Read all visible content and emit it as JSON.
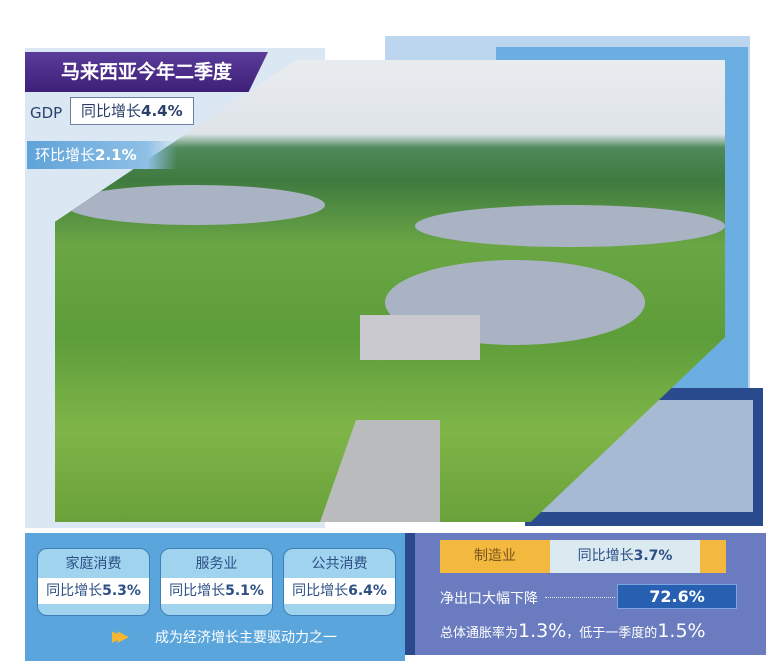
{
  "header": {
    "title": "马来西亚今年二季度"
  },
  "gdp": {
    "label": "GDP",
    "yoy_prefix": "同比增长",
    "yoy_value": "4.4%",
    "qoq_prefix": "环比增长",
    "qoq_value": "2.1%"
  },
  "cards": [
    {
      "title": "家庭消费",
      "prefix": "同比增长",
      "value": "5.3%"
    },
    {
      "title": "服务业",
      "prefix": "同比增长",
      "value": "5.1%"
    },
    {
      "title": "公共消费",
      "prefix": "同比增长",
      "value": "6.4%"
    }
  ],
  "drive_text": "成为经济增长主要驱动力之一",
  "manufacturing": {
    "label": "制造业",
    "prefix": "同比增长",
    "value": "3.7%"
  },
  "net_exports": {
    "label": "净出口大幅下降",
    "value": "72.6%"
  },
  "inflation": {
    "t1": "总体通胀率为",
    "v1": "1.3%",
    "t2": "，低于一季度的",
    "v2": "1.5%"
  },
  "colors": {
    "purple": "#4a2b87",
    "blue": "#5aa6dc",
    "navy": "#294b8e",
    "yellow": "#f3b83e",
    "slate": "#6a7cbf"
  },
  "photo": {
    "subject": "aerial-landscape-photo"
  }
}
